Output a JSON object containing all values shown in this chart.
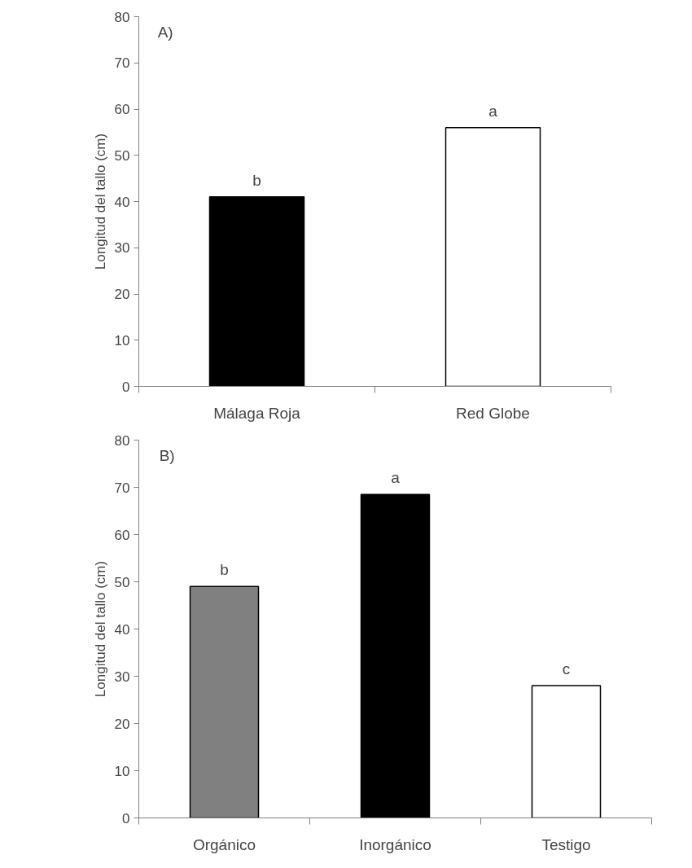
{
  "chart_data": [
    {
      "type": "bar",
      "title": "A)",
      "ylabel": "Longitud del tallo (cm)",
      "categories": [
        "Málaga Roja",
        "Red Globe"
      ],
      "values": [
        41,
        56
      ],
      "colors": [
        "#000000",
        "#ffffff"
      ],
      "ylim": [
        0,
        80
      ],
      "yticks": [
        0,
        10,
        20,
        30,
        40,
        50,
        60,
        70,
        80
      ],
      "grid": false,
      "annotations": [
        {
          "text": "b",
          "x": "Málaga Roja",
          "y": 41
        },
        {
          "text": "a",
          "x": "Red Globe",
          "y": 56
        }
      ]
    },
    {
      "type": "bar",
      "title": "B)",
      "ylabel": "Longitud del tallo (cm)",
      "categories": [
        "Orgánico",
        "Inorgánico",
        "Testigo"
      ],
      "values": [
        49,
        68.5,
        28
      ],
      "colors": [
        "#808080",
        "#000000",
        "#ffffff"
      ],
      "ylim": [
        0,
        80
      ],
      "yticks": [
        0,
        10,
        20,
        30,
        40,
        50,
        60,
        70,
        80
      ],
      "grid": false,
      "annotations": [
        {
          "text": "b",
          "x": "Orgánico",
          "y": 49
        },
        {
          "text": "a",
          "x": "Inorgánico",
          "y": 68.5
        },
        {
          "text": "c",
          "x": "Testigo",
          "y": 28
        }
      ]
    }
  ]
}
